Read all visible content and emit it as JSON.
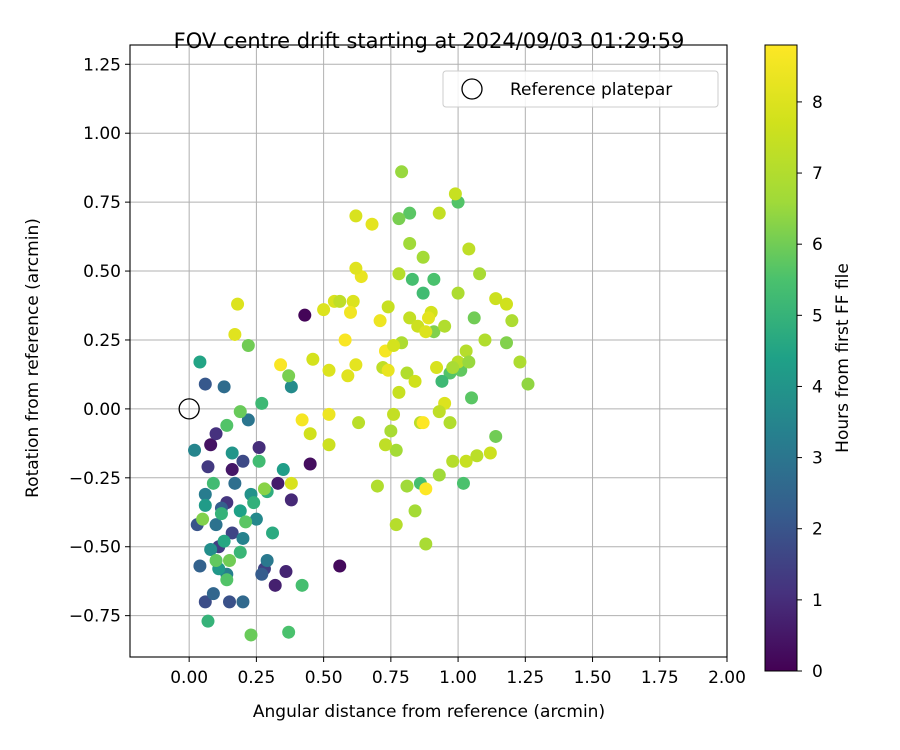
{
  "chart_data": {
    "type": "scatter",
    "title": "FOV centre drift starting at 2024/09/03 01:29:59",
    "xlabel": "Angular distance from reference (arcmin)",
    "ylabel": "Rotation from reference (arcmin)",
    "xlim": [
      -0.22,
      2.0
    ],
    "ylim": [
      -0.9,
      1.32
    ],
    "xticks": [
      0.0,
      0.25,
      0.5,
      0.75,
      1.0,
      1.25,
      1.5,
      1.75,
      2.0
    ],
    "xtick_labels": [
      "0.00",
      "0.25",
      "0.50",
      "0.75",
      "1.00",
      "1.25",
      "1.50",
      "1.75",
      "2.00"
    ],
    "yticks": [
      -0.75,
      -0.5,
      -0.25,
      0.0,
      0.25,
      0.5,
      0.75,
      1.0,
      1.25
    ],
    "ytick_labels": [
      "−0.75",
      "−0.50",
      "−0.25",
      "0.00",
      "0.25",
      "0.50",
      "0.75",
      "1.00",
      "1.25"
    ],
    "grid": true,
    "legend": {
      "position": "top-right",
      "label": "Reference platepar"
    },
    "reference_point": {
      "x": 0.0,
      "y": 0.0
    },
    "colorbar": {
      "label": "Hours from first FF file",
      "range": [
        0,
        8.8
      ],
      "ticks": [
        0,
        1,
        2,
        3,
        4,
        5,
        6,
        7,
        8
      ],
      "tick_labels": [
        "0",
        "1",
        "2",
        "3",
        "4",
        "5",
        "6",
        "7",
        "8"
      ],
      "colormap": "viridis"
    },
    "points": [
      {
        "x": 0.43,
        "y": 0.34,
        "h": 0.1
      },
      {
        "x": 0.56,
        "y": -0.57,
        "h": 0.2
      },
      {
        "x": 0.45,
        "y": -0.2,
        "h": 0.3
      },
      {
        "x": 0.08,
        "y": -0.13,
        "h": 0.4
      },
      {
        "x": 0.16,
        "y": -0.22,
        "h": 0.5
      },
      {
        "x": 0.33,
        "y": -0.27,
        "h": 0.6
      },
      {
        "x": 0.32,
        "y": -0.64,
        "h": 0.7
      },
      {
        "x": 0.36,
        "y": -0.59,
        "h": 0.8
      },
      {
        "x": 0.38,
        "y": -0.33,
        "h": 0.9
      },
      {
        "x": 0.26,
        "y": -0.14,
        "h": 1.0
      },
      {
        "x": 0.1,
        "y": -0.09,
        "h": 1.1
      },
      {
        "x": 0.14,
        "y": -0.34,
        "h": 1.2
      },
      {
        "x": 0.07,
        "y": -0.21,
        "h": 1.3
      },
      {
        "x": 0.11,
        "y": -0.5,
        "h": 1.4
      },
      {
        "x": 0.28,
        "y": -0.58,
        "h": 1.5
      },
      {
        "x": 0.16,
        "y": -0.45,
        "h": 1.6
      },
      {
        "x": 0.2,
        "y": -0.19,
        "h": 1.7
      },
      {
        "x": 0.06,
        "y": -0.7,
        "h": 1.8
      },
      {
        "x": 0.15,
        "y": -0.7,
        "h": 1.9
      },
      {
        "x": 0.03,
        "y": -0.42,
        "h": 2.0
      },
      {
        "x": 0.06,
        "y": 0.09,
        "h": 2.1
      },
      {
        "x": 0.27,
        "y": -0.6,
        "h": 2.2
      },
      {
        "x": 0.12,
        "y": -0.36,
        "h": 2.3
      },
      {
        "x": 0.04,
        "y": -0.57,
        "h": 2.4
      },
      {
        "x": 0.09,
        "y": -0.67,
        "h": 2.5
      },
      {
        "x": 0.2,
        "y": -0.7,
        "h": 2.6
      },
      {
        "x": 0.13,
        "y": 0.08,
        "h": 2.7
      },
      {
        "x": 0.17,
        "y": -0.27,
        "h": 2.8
      },
      {
        "x": 0.1,
        "y": -0.42,
        "h": 2.9
      },
      {
        "x": 0.22,
        "y": -0.04,
        "h": 3.0
      },
      {
        "x": 0.29,
        "y": -0.55,
        "h": 3.1
      },
      {
        "x": 0.06,
        "y": -0.31,
        "h": 3.2
      },
      {
        "x": 0.14,
        "y": -0.6,
        "h": 3.3
      },
      {
        "x": 0.2,
        "y": -0.47,
        "h": 3.4
      },
      {
        "x": 0.02,
        "y": -0.15,
        "h": 3.5
      },
      {
        "x": 0.25,
        "y": -0.4,
        "h": 3.6
      },
      {
        "x": 0.38,
        "y": 0.08,
        "h": 3.7
      },
      {
        "x": 0.08,
        "y": -0.51,
        "h": 3.8
      },
      {
        "x": 0.23,
        "y": -0.31,
        "h": 3.9
      },
      {
        "x": 0.16,
        "y": -0.16,
        "h": 4.0
      },
      {
        "x": 0.11,
        "y": -0.58,
        "h": 4.1
      },
      {
        "x": 0.06,
        "y": -0.35,
        "h": 4.2
      },
      {
        "x": 0.35,
        "y": -0.22,
        "h": 4.3
      },
      {
        "x": 0.19,
        "y": -0.37,
        "h": 4.4
      },
      {
        "x": 0.04,
        "y": 0.17,
        "h": 4.5
      },
      {
        "x": 0.13,
        "y": -0.48,
        "h": 4.6
      },
      {
        "x": 0.31,
        "y": -0.45,
        "h": 4.7
      },
      {
        "x": 0.29,
        "y": -0.3,
        "h": 4.8
      },
      {
        "x": 0.24,
        "y": -0.34,
        "h": 4.9
      },
      {
        "x": 0.07,
        "y": -0.77,
        "h": 5.0
      },
      {
        "x": 0.19,
        "y": -0.52,
        "h": 5.1
      },
      {
        "x": 0.27,
        "y": 0.02,
        "h": 5.2
      },
      {
        "x": 0.09,
        "y": -0.27,
        "h": 5.3
      },
      {
        "x": 0.42,
        "y": -0.64,
        "h": 5.4
      },
      {
        "x": 0.37,
        "y": -0.81,
        "h": 5.5
      },
      {
        "x": 0.14,
        "y": -0.62,
        "h": 5.6
      },
      {
        "x": 0.21,
        "y": -0.41,
        "h": 5.7
      },
      {
        "x": 0.1,
        "y": -0.55,
        "h": 5.8
      },
      {
        "x": 0.23,
        "y": -0.82,
        "h": 5.9
      },
      {
        "x": 0.15,
        "y": -0.55,
        "h": 6.0
      },
      {
        "x": 0.22,
        "y": 0.23,
        "h": 6.0
      },
      {
        "x": 0.37,
        "y": 0.12,
        "h": 6.1
      },
      {
        "x": 0.05,
        "y": -0.4,
        "h": 6.2
      },
      {
        "x": 1.0,
        "y": 0.75,
        "h": 5.6
      },
      {
        "x": 0.82,
        "y": 0.71,
        "h": 5.7
      },
      {
        "x": 0.83,
        "y": 0.47,
        "h": 5.4
      },
      {
        "x": 0.91,
        "y": 0.47,
        "h": 5.5
      },
      {
        "x": 0.87,
        "y": 0.42,
        "h": 5.3
      },
      {
        "x": 0.97,
        "y": 0.13,
        "h": 5.6
      },
      {
        "x": 1.01,
        "y": 0.14,
        "h": 5.8
      },
      {
        "x": 0.94,
        "y": 0.1,
        "h": 5.2
      },
      {
        "x": 0.86,
        "y": -0.27,
        "h": 5.4
      },
      {
        "x": 1.02,
        "y": -0.27,
        "h": 5.5
      },
      {
        "x": 1.05,
        "y": 0.04,
        "h": 5.7
      },
      {
        "x": 1.06,
        "y": 0.33,
        "h": 6.0
      },
      {
        "x": 1.14,
        "y": -0.1,
        "h": 6.0
      },
      {
        "x": 1.18,
        "y": 0.24,
        "h": 6.2
      },
      {
        "x": 1.26,
        "y": 0.09,
        "h": 6.4
      },
      {
        "x": 0.78,
        "y": 0.69,
        "h": 6.1
      },
      {
        "x": 0.91,
        "y": 0.28,
        "h": 6.2
      },
      {
        "x": 0.79,
        "y": 0.86,
        "h": 6.5
      },
      {
        "x": 0.82,
        "y": 0.6,
        "h": 6.6
      },
      {
        "x": 0.87,
        "y": 0.55,
        "h": 6.7
      },
      {
        "x": 1.0,
        "y": 0.42,
        "h": 6.9
      },
      {
        "x": 1.08,
        "y": 0.49,
        "h": 6.8
      },
      {
        "x": 1.2,
        "y": 0.32,
        "h": 6.9
      },
      {
        "x": 1.23,
        "y": 0.17,
        "h": 6.9
      },
      {
        "x": 1.1,
        "y": 0.25,
        "h": 7.0
      },
      {
        "x": 1.03,
        "y": 0.21,
        "h": 7.1
      },
      {
        "x": 1.0,
        "y": 0.17,
        "h": 7.2
      },
      {
        "x": 1.04,
        "y": 0.58,
        "h": 7.3
      },
      {
        "x": 0.93,
        "y": 0.71,
        "h": 7.4
      },
      {
        "x": 0.99,
        "y": 0.78,
        "h": 7.5
      },
      {
        "x": 1.14,
        "y": 0.4,
        "h": 7.6
      },
      {
        "x": 1.18,
        "y": 0.38,
        "h": 7.7
      },
      {
        "x": 0.9,
        "y": 0.35,
        "h": 7.8
      },
      {
        "x": 0.92,
        "y": 0.15,
        "h": 7.9
      },
      {
        "x": 0.95,
        "y": 0.02,
        "h": 8.0
      },
      {
        "x": 0.97,
        "y": -0.05,
        "h": 7.0
      },
      {
        "x": 0.86,
        "y": -0.05,
        "h": 7.2
      },
      {
        "x": 0.78,
        "y": 0.49,
        "h": 7.1
      },
      {
        "x": 0.79,
        "y": 0.24,
        "h": 6.9
      },
      {
        "x": 0.81,
        "y": 0.13,
        "h": 7.0
      },
      {
        "x": 0.75,
        "y": -0.08,
        "h": 6.8
      },
      {
        "x": 0.77,
        "y": -0.15,
        "h": 6.7
      },
      {
        "x": 0.81,
        "y": -0.28,
        "h": 6.6
      },
      {
        "x": 0.84,
        "y": -0.37,
        "h": 6.7
      },
      {
        "x": 0.88,
        "y": -0.49,
        "h": 6.8
      },
      {
        "x": 0.77,
        "y": -0.42,
        "h": 7.1
      },
      {
        "x": 0.7,
        "y": -0.28,
        "h": 7.0
      },
      {
        "x": 0.73,
        "y": -0.13,
        "h": 7.3
      },
      {
        "x": 0.76,
        "y": -0.02,
        "h": 7.4
      },
      {
        "x": 0.78,
        "y": 0.06,
        "h": 7.5
      },
      {
        "x": 0.63,
        "y": -0.05,
        "h": 7.2
      },
      {
        "x": 0.52,
        "y": -0.13,
        "h": 7.6
      },
      {
        "x": 0.45,
        "y": -0.09,
        "h": 7.7
      },
      {
        "x": 0.46,
        "y": 0.18,
        "h": 7.8
      },
      {
        "x": 0.52,
        "y": 0.14,
        "h": 8.0
      },
      {
        "x": 0.59,
        "y": 0.12,
        "h": 8.1
      },
      {
        "x": 0.62,
        "y": 0.16,
        "h": 8.2
      },
      {
        "x": 0.61,
        "y": 0.39,
        "h": 8.0
      },
      {
        "x": 0.64,
        "y": 0.48,
        "h": 8.3
      },
      {
        "x": 0.62,
        "y": 0.51,
        "h": 8.1
      },
      {
        "x": 0.62,
        "y": 0.7,
        "h": 7.9
      },
      {
        "x": 0.68,
        "y": 0.67,
        "h": 8.2
      },
      {
        "x": 0.71,
        "y": 0.32,
        "h": 8.4
      },
      {
        "x": 0.73,
        "y": 0.21,
        "h": 8.6
      },
      {
        "x": 0.58,
        "y": 0.25,
        "h": 8.7
      },
      {
        "x": 0.6,
        "y": 0.35,
        "h": 8.5
      },
      {
        "x": 0.5,
        "y": 0.36,
        "h": 8.0
      },
      {
        "x": 0.54,
        "y": 0.39,
        "h": 7.9
      },
      {
        "x": 0.34,
        "y": 0.16,
        "h": 8.7
      },
      {
        "x": 0.42,
        "y": -0.04,
        "h": 8.6
      },
      {
        "x": 0.52,
        "y": -0.02,
        "h": 8.4
      },
      {
        "x": 0.88,
        "y": -0.29,
        "h": 8.8
      },
      {
        "x": 0.87,
        "y": -0.05,
        "h": 8.8
      },
      {
        "x": 0.18,
        "y": 0.38,
        "h": 8.0
      },
      {
        "x": 0.17,
        "y": 0.27,
        "h": 8.1
      },
      {
        "x": 0.38,
        "y": -0.27,
        "h": 7.9
      },
      {
        "x": 0.82,
        "y": 0.33,
        "h": 7.4
      },
      {
        "x": 0.85,
        "y": 0.3,
        "h": 7.6
      },
      {
        "x": 0.72,
        "y": 0.15,
        "h": 7.3
      },
      {
        "x": 0.74,
        "y": 0.14,
        "h": 8.3
      },
      {
        "x": 0.84,
        "y": 0.1,
        "h": 7.7
      },
      {
        "x": 0.89,
        "y": 0.33,
        "h": 8.2
      },
      {
        "x": 0.98,
        "y": -0.19,
        "h": 7.1
      },
      {
        "x": 1.03,
        "y": -0.19,
        "h": 7.5
      },
      {
        "x": 1.07,
        "y": -0.17,
        "h": 7.2
      },
      {
        "x": 1.12,
        "y": -0.16,
        "h": 7.6
      },
      {
        "x": 0.93,
        "y": -0.24,
        "h": 6.6
      },
      {
        "x": 0.88,
        "y": 0.28,
        "h": 8.0
      },
      {
        "x": 0.93,
        "y": -0.01,
        "h": 7.3
      },
      {
        "x": 0.98,
        "y": 0.15,
        "h": 6.8
      },
      {
        "x": 1.04,
        "y": 0.17,
        "h": 6.5
      },
      {
        "x": 0.95,
        "y": 0.3,
        "h": 7.0
      },
      {
        "x": 0.56,
        "y": 0.39,
        "h": 7.3
      },
      {
        "x": 0.74,
        "y": 0.37,
        "h": 7.5
      },
      {
        "x": 0.76,
        "y": 0.23,
        "h": 7.8
      },
      {
        "x": 0.28,
        "y": -0.29,
        "h": 6.3
      },
      {
        "x": 0.19,
        "y": -0.01,
        "h": 5.9
      },
      {
        "x": 0.14,
        "y": -0.06,
        "h": 5.6
      },
      {
        "x": 0.12,
        "y": -0.38,
        "h": 5.0
      },
      {
        "x": 0.26,
        "y": -0.19,
        "h": 5.3
      }
    ]
  }
}
